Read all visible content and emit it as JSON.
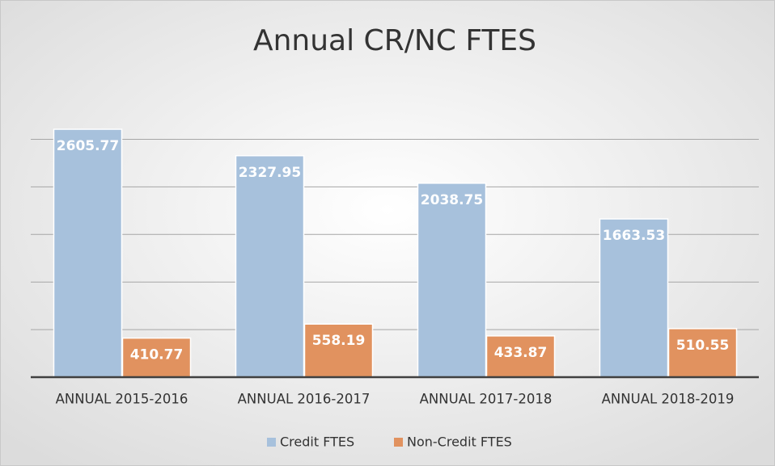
{
  "chart_data": {
    "type": "bar",
    "title": "Annual CR/NC FTES",
    "categories": [
      "ANNUAL 2015-2016",
      "ANNUAL 2016-2017",
      "ANNUAL 2017-2018",
      "ANNUAL 2018-2019"
    ],
    "series": [
      {
        "name": "Credit FTES",
        "color": "#a7c1dc",
        "values": [
          2605.77,
          2327.95,
          2038.75,
          1663.53
        ]
      },
      {
        "name": "Non-Credit FTES",
        "color": "#e1925f",
        "values": [
          410.77,
          558.19,
          433.87,
          510.55
        ]
      }
    ],
    "ylim": [
      0,
      3000
    ],
    "yticks": [
      0,
      500,
      1000,
      1500,
      2000,
      2500
    ],
    "grid": true,
    "legend": "bottom"
  }
}
